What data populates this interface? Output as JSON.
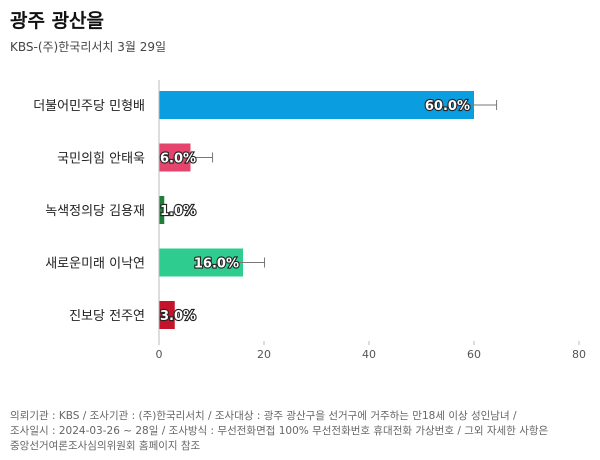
{
  "header": {
    "title": "광주 광산을",
    "subtitle": "KBS-(주)한국리서치 3월 29일"
  },
  "chart_data": {
    "type": "bar",
    "orientation": "horizontal",
    "categories": [
      "더불어민주당 민형배",
      "국민의힘 안태욱",
      "녹색정의당 김용재",
      "새로운미래 이낙연",
      "진보당 전주연"
    ],
    "values": [
      60.0,
      6.0,
      1.0,
      16.0,
      3.0
    ],
    "value_labels": [
      "60.0%",
      "6.0%",
      "1.0%",
      "16.0%",
      "3.0%"
    ],
    "error_bars": [
      [
        55.7,
        64.3
      ],
      [
        3.9,
        10.2
      ],
      null,
      [
        12.4,
        20.1
      ],
      null
    ],
    "colors": [
      "#0a9ee0",
      "#e5446d",
      "#1f7f3a",
      "#2ecc8f",
      "#c4132b"
    ],
    "xlim": [
      0,
      80
    ],
    "xticks": [
      0,
      20,
      40,
      60,
      80
    ],
    "grid": false
  },
  "footer": {
    "lines": [
      "의뢰기관 : KBS / 조사기관 : (주)한국리서치 / 조사대상 : 광주 광산구을 선거구에 거주하는 만18세 이상 성인남녀 /",
      "조사일시 : 2024-03-26 ~ 28일 / 조사방식 : 무선전화면접 100% 무선전화번호 휴대전화 가상번호 / 그외 자세한 사항은",
      "중앙선거여론조사심의위원회 홈페이지 참조"
    ]
  }
}
